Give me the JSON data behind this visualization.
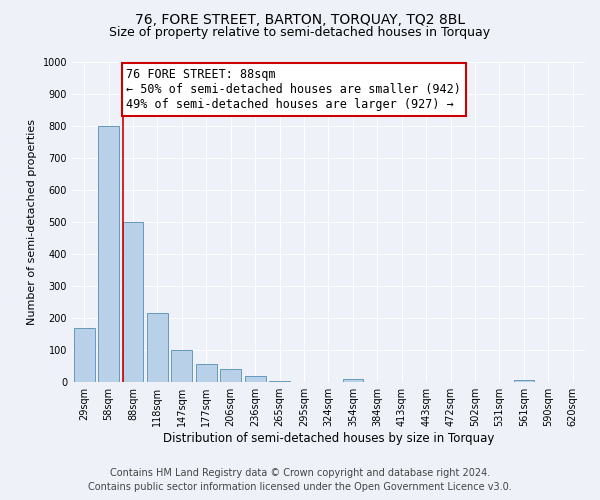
{
  "title": "76, FORE STREET, BARTON, TORQUAY, TQ2 8BL",
  "subtitle": "Size of property relative to semi-detached houses in Torquay",
  "xlabel": "Distribution of semi-detached houses by size in Torquay",
  "ylabel": "Number of semi-detached properties",
  "categories": [
    "29sqm",
    "58sqm",
    "88sqm",
    "118sqm",
    "147sqm",
    "177sqm",
    "206sqm",
    "236sqm",
    "265sqm",
    "295sqm",
    "324sqm",
    "354sqm",
    "384sqm",
    "413sqm",
    "443sqm",
    "472sqm",
    "502sqm",
    "531sqm",
    "561sqm",
    "590sqm",
    "620sqm"
  ],
  "values": [
    170,
    800,
    500,
    215,
    100,
    57,
    40,
    18,
    5,
    0,
    0,
    10,
    0,
    0,
    0,
    0,
    0,
    0,
    7,
    0,
    0
  ],
  "bar_color": "#b8d0e8",
  "bar_edge_color": "#6699bb",
  "red_line_color": "#cc0000",
  "red_line_index": 2,
  "annotation_title": "76 FORE STREET: 88sqm",
  "annotation_line1": "← 50% of semi-detached houses are smaller (942)",
  "annotation_line2": "49% of semi-detached houses are larger (927) →",
  "annotation_box_color": "#ffffff",
  "annotation_box_edge": "#cc0000",
  "ylim": [
    0,
    1000
  ],
  "yticks": [
    0,
    100,
    200,
    300,
    400,
    500,
    600,
    700,
    800,
    900,
    1000
  ],
  "footer1": "Contains HM Land Registry data © Crown copyright and database right 2024.",
  "footer2": "Contains public sector information licensed under the Open Government Licence v3.0.",
  "title_fontsize": 10,
  "subtitle_fontsize": 9,
  "xlabel_fontsize": 8.5,
  "ylabel_fontsize": 8,
  "tick_fontsize": 7,
  "annotation_title_fontsize": 9,
  "annotation_body_fontsize": 8.5,
  "footer_fontsize": 7,
  "bg_color": "#eef2f8"
}
